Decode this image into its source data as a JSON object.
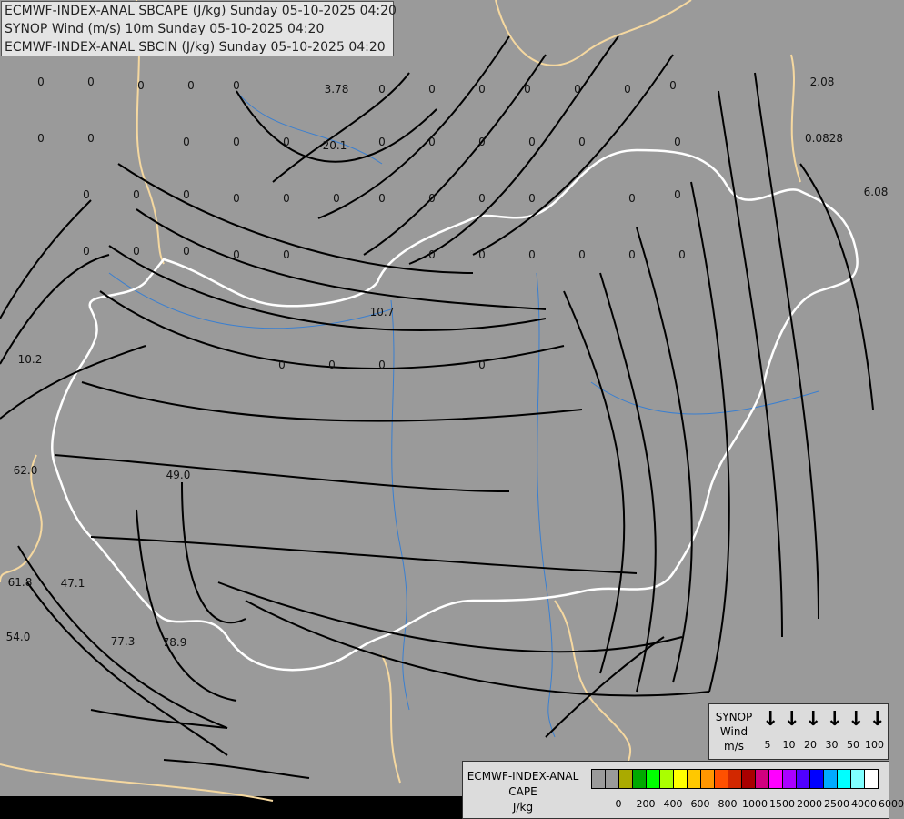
{
  "title_lines": [
    "ECMWF-INDEX-ANAL SBCAPE (J/kg) Sunday 05-10-2025 04:20",
    "SYNOP Wind (m/s) 10m Sunday 05-10-2025 04:20",
    "ECMWF-INDEX-ANAL SBCIN (J/kg) Sunday 05-10-2025 04:20"
  ],
  "map": {
    "background_color": "#9a9a9a",
    "streamline_color": "#000000",
    "border_color": "#ffffff",
    "neighbor_border_color": "#f5d8a0",
    "river_color": "#3a7fd0",
    "cape_values": [
      "3.78",
      "20.1",
      "10.7",
      "10.2",
      "62.0",
      "49.0",
      "61.8",
      "47.1",
      "54.0",
      "77.3",
      "78.9",
      "2.08",
      "0.0828",
      "6.08",
      "0",
      "0",
      "0",
      "0",
      "0",
      "0",
      "0",
      "0",
      "0",
      "0",
      "0",
      "0",
      "0",
      "0",
      "0",
      "0",
      "0",
      "0",
      "0",
      "0",
      "0",
      "0",
      "0",
      "0",
      "0",
      "0",
      "0",
      "0",
      "0",
      "0",
      "0",
      "0",
      "0",
      "0",
      "0",
      "0",
      "0",
      "0",
      "0",
      "0",
      "0",
      "0",
      "0",
      "0",
      "0",
      "0",
      "0",
      "0",
      "0",
      "0"
    ]
  },
  "wind_legend": {
    "label_lines": [
      "SYNOP",
      "Wind",
      "m/s"
    ],
    "icon": "arrow-down-icon",
    "speeds": [
      "5",
      "10",
      "20",
      "30",
      "50",
      "100"
    ]
  },
  "cape_legend": {
    "label_lines": [
      "ECMWF-INDEX-ANAL",
      "CAPE",
      "J/kg"
    ],
    "colors": [
      "#9a9a9a",
      "#9a9a9a",
      "#aaaa00",
      "#00aa00",
      "#00ff00",
      "#aaff00",
      "#ffff00",
      "#ffc800",
      "#ff9600",
      "#ff5000",
      "#d22800",
      "#aa0000",
      "#d2007f",
      "#ff00ff",
      "#aa00ff",
      "#5000ff",
      "#0000ff",
      "#00aaff",
      "#00ffff",
      "#80ffff",
      "#ffffff"
    ],
    "ticks": [
      "0",
      "200",
      "400",
      "600",
      "800",
      "1000",
      "1500",
      "2000",
      "2500",
      "4000",
      "6000"
    ]
  }
}
